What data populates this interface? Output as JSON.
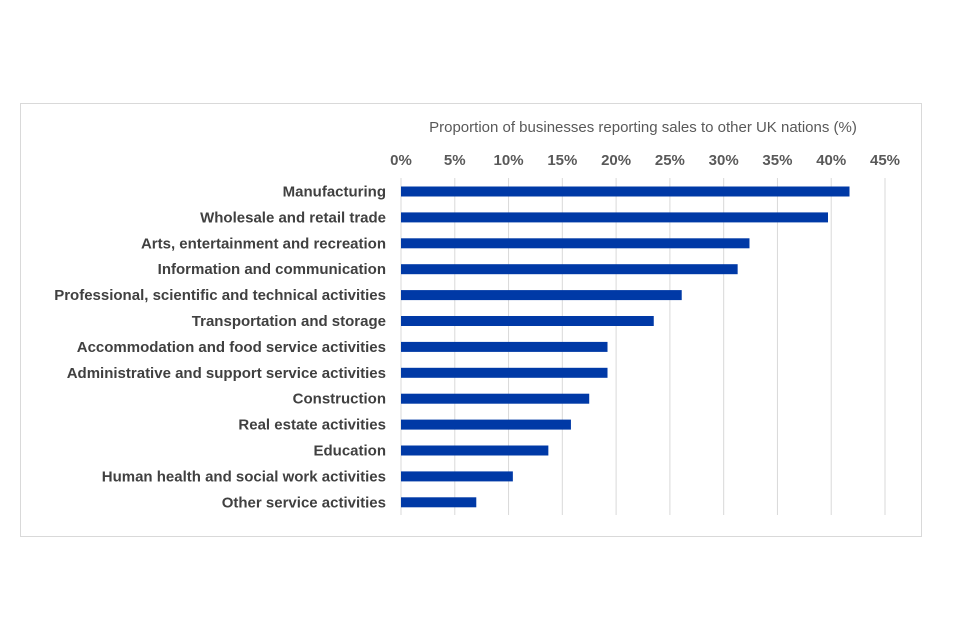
{
  "chart_data": {
    "type": "bar",
    "orientation": "horizontal",
    "xlabel": "Proportion of businesses reporting sales to other UK nations (%)",
    "xlabel_position": "top",
    "x_ticks": [
      "0%",
      "5%",
      "10%",
      "15%",
      "20%",
      "25%",
      "30%",
      "35%",
      "40%",
      "45%"
    ],
    "xlim": [
      0,
      45
    ],
    "grid": true,
    "bar_color": "#0039a6",
    "categories": [
      "Manufacturing",
      "Wholesale and retail trade",
      "Arts, entertainment and recreation",
      "Information and communication",
      "Professional, scientific and technical activities",
      "Transportation and storage",
      "Accommodation and food service activities",
      "Administrative and support service activities",
      "Construction",
      "Real estate activities",
      "Education",
      "Human health and social work activities",
      "Other service activities"
    ],
    "values": [
      41.7,
      39.7,
      32.4,
      31.3,
      26.1,
      23.5,
      19.2,
      19.2,
      17.5,
      15.8,
      13.7,
      10.4,
      7.0
    ]
  }
}
